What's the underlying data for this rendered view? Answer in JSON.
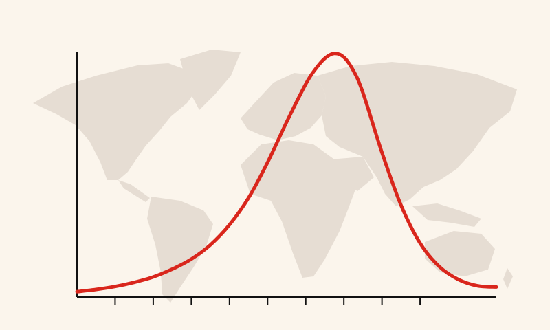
{
  "colors": {
    "background": "#fbf5ec",
    "map": "#e6ddd3",
    "curve": "#d9261c",
    "axis": "#111111"
  },
  "background_image": {
    "icon": "world-map-icon"
  },
  "chart_data": {
    "type": "line",
    "title": "",
    "xlabel": "",
    "ylabel": "",
    "xlim": [
      0,
      11
    ],
    "ylim": [
      0,
      100
    ],
    "x_ticks": [
      1,
      2,
      3,
      4,
      5,
      6,
      7,
      8,
      9
    ],
    "grid": false,
    "legend": "none",
    "series": [
      {
        "x": [
          0,
          0.5,
          1,
          1.5,
          2,
          2.5,
          3,
          3.5,
          4,
          4.5,
          5,
          5.5,
          6,
          6.25,
          6.5,
          6.75,
          7,
          7.25,
          7.5,
          8,
          8.5,
          9,
          9.5,
          10,
          10.5,
          11
        ],
        "y": [
          2.2,
          3.1,
          4.3,
          6.0,
          8.2,
          11.4,
          15.5,
          21.3,
          29.5,
          40.5,
          55.0,
          71.5,
          87.0,
          93.0,
          97.5,
          99.5,
          98.0,
          92.5,
          83.5,
          59.0,
          37.5,
          22.0,
          12.5,
          7.2,
          4.6,
          4.1
        ]
      }
    ]
  }
}
